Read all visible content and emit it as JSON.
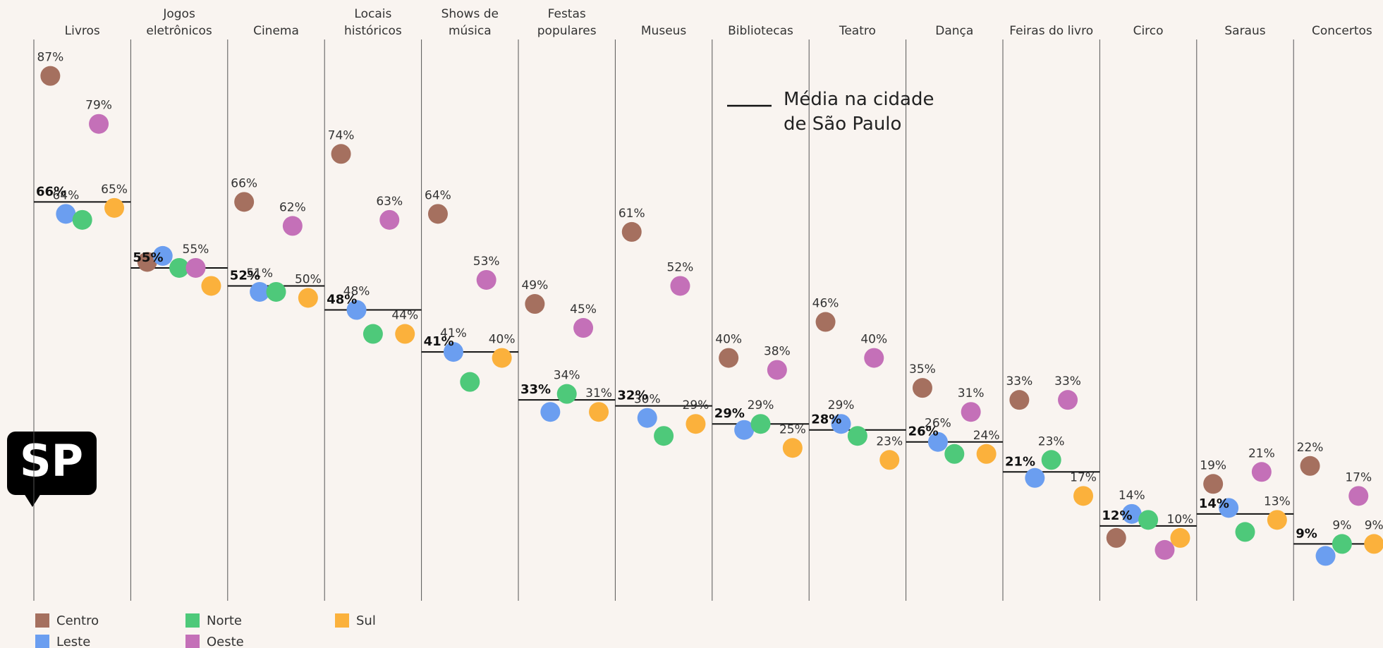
{
  "chart_data": {
    "type": "dot",
    "categories": [
      "Livros",
      "Jogos eletrônicos",
      "Cinema",
      "Locais históricos",
      "Shows de música",
      "Festas populares",
      "Museus",
      "Bibliotecas",
      "Teatro",
      "Dança",
      "Feiras do livro",
      "Circo",
      "Saraus",
      "Concertos"
    ],
    "series": [
      {
        "name": "Centro",
        "color": "#a5705f",
        "values": [
          87,
          56,
          66,
          74,
          64,
          49,
          61,
          40,
          46,
          35,
          33,
          10,
          19,
          22
        ],
        "value_labels": [
          "87%",
          null,
          "66%",
          "74%",
          "64%",
          "49%",
          "61%",
          "40%",
          "46%",
          "35%",
          "33%",
          null,
          "19%",
          "22%"
        ]
      },
      {
        "name": "Leste",
        "color": "#6b9ef0",
        "values": [
          64,
          57,
          51,
          48,
          41,
          31,
          30,
          28,
          29,
          26,
          20,
          14,
          15,
          7
        ],
        "value_labels": [
          "64%",
          null,
          "51%",
          "48%",
          "41%",
          null,
          "30%",
          null,
          "29%",
          "26%",
          null,
          "14%",
          null,
          null
        ]
      },
      {
        "name": "Norte",
        "color": "#4ec97a",
        "values": [
          63,
          55,
          51,
          44,
          36,
          34,
          27,
          29,
          27,
          24,
          23,
          13,
          11,
          9
        ],
        "value_labels": [
          null,
          null,
          null,
          null,
          null,
          "34%",
          null,
          "29%",
          null,
          null,
          "23%",
          null,
          null,
          "9%"
        ]
      },
      {
        "name": "Oeste",
        "color": "#c470b8",
        "values": [
          79,
          55,
          62,
          63,
          53,
          45,
          52,
          38,
          40,
          31,
          33,
          8,
          21,
          17
        ],
        "value_labels": [
          "79%",
          "55%",
          "62%",
          "63%",
          "53%",
          "45%",
          "52%",
          "38%",
          "40%",
          "31%",
          "33%",
          null,
          "21%",
          "17%"
        ]
      },
      {
        "name": "Sul",
        "color": "#fbb13c",
        "values": [
          65,
          52,
          50,
          44,
          40,
          31,
          29,
          25,
          23,
          24,
          17,
          10,
          13,
          9
        ],
        "value_labels": [
          "65%",
          null,
          "50%",
          "44%",
          "40%",
          "31%",
          "29%",
          "25%",
          "23%",
          "24%",
          "17%",
          "10%",
          "13%",
          "9%"
        ]
      }
    ],
    "average": {
      "name": "Média na cidade de São Paulo",
      "color": "#111111",
      "values": [
        66,
        55,
        52,
        48,
        41,
        33,
        32,
        29,
        28,
        26,
        21,
        12,
        14,
        9
      ],
      "value_labels": [
        "66%",
        "55%",
        "52%",
        "48%",
        "41%",
        "33%",
        "32%",
        "29%",
        "28%",
        "26%",
        "21%",
        "12%",
        "14%",
        "9%"
      ]
    },
    "ylim": [
      0,
      100
    ],
    "logo": "SP"
  }
}
